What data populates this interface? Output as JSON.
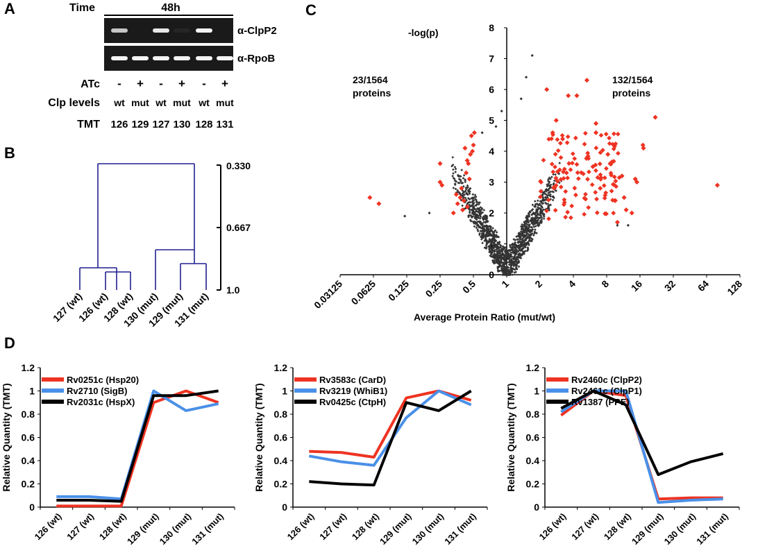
{
  "panels": {
    "A": {
      "label": "A",
      "time_label": "Time",
      "time_value": "48h",
      "blot_labels": [
        "α-ClpP2",
        "α-RpoB"
      ],
      "rows": [
        {
          "label": "ATc",
          "values": [
            "-",
            "+",
            "-",
            "+",
            "-",
            "+"
          ]
        },
        {
          "label": "Clp levels",
          "values": [
            "wt",
            "mut",
            "wt",
            "mut",
            "wt",
            "mut"
          ]
        },
        {
          "label": "TMT",
          "values": [
            "126",
            "129",
            "127",
            "130",
            "128",
            "131"
          ]
        }
      ],
      "clpp2_band_intensity": [
        0.75,
        0.0,
        0.9,
        0.05,
        0.95,
        0.0
      ],
      "rpob_band_intensity": [
        0.95,
        0.95,
        0.95,
        0.95,
        0.95,
        0.95
      ]
    },
    "B": {
      "label": "B",
      "leaves": [
        "127 (wt)",
        "126 (wt)",
        "128 (wt)",
        "130 (mut)",
        "129 (mut)",
        "131 (mut)"
      ],
      "scale_ticks": [
        "0.330",
        "0.667",
        "1.0"
      ],
      "line_color": "#1f1f8f"
    },
    "C": {
      "label": "C",
      "y_axis_label": "-log(p)",
      "y_ticks": [
        "0",
        "1",
        "2",
        "3",
        "4",
        "5",
        "6",
        "7",
        "8"
      ],
      "x_ticks": [
        "0.03125",
        "0.0625",
        "0.125",
        "0.25",
        "0.5",
        "1",
        "2",
        "4",
        "8",
        "16",
        "32",
        "64",
        "128"
      ],
      "x_axis_label": "Average Protein Ratio (mut/wt)",
      "left_annotation": [
        "23/1564",
        "proteins"
      ],
      "right_annotation": [
        "132/1564",
        "proteins"
      ],
      "sig_color": "#ee3322",
      "nonsig_color": "#333333"
    },
    "D": {
      "label": "D",
      "y_axis_label": "Relative Quantity (TMT)",
      "y_ticks": [
        "0",
        "0.2",
        "0.4",
        "0.6",
        "0.8",
        "1",
        "1.2"
      ],
      "x_ticks": [
        "126 (wt)",
        "127 (wt)",
        "128 (wt)",
        "129 (mut)",
        "130 (mut)",
        "131 (mut)"
      ]
    }
  },
  "chart_data": [
    {
      "type": "scatter",
      "panel": "C",
      "xscale": "log2",
      "xlim": [
        0.03125,
        128
      ],
      "ylim": [
        0,
        8
      ],
      "xlabel": "Average Protein Ratio (mut/wt)",
      "ylabel": "-log(p)",
      "series": [
        {
          "points": [
            [
              0.058,
              2.5
            ],
            [
              0.07,
              2.3
            ],
            [
              0.25,
              3.6
            ],
            [
              0.25,
              3.0
            ],
            [
              0.26,
              2.9
            ],
            [
              0.33,
              2.0
            ],
            [
              0.38,
              2.5
            ],
            [
              0.4,
              2.1
            ],
            [
              0.42,
              4.1
            ],
            [
              0.44,
              3.7
            ],
            [
              0.45,
              3.6
            ],
            [
              0.48,
              4.5
            ],
            [
              0.5,
              4.2
            ],
            [
              0.36,
              2.3
            ],
            [
              0.47,
              3.9
            ],
            [
              0.43,
              3.3
            ],
            [
              0.39,
              2.8
            ],
            [
              0.51,
              4.6
            ],
            [
              0.35,
              2.6
            ],
            [
              0.46,
              3.1
            ],
            [
              0.41,
              2.4
            ],
            [
              0.49,
              4.0
            ],
            [
              0.44,
              2.2
            ]
          ]
        },
        {
          "points": [
            [
              2.3,
              6.0
            ],
            [
              2.6,
              4.6
            ],
            [
              2.8,
              5.0
            ],
            [
              3.2,
              4.4
            ],
            [
              3.6,
              5.8
            ],
            [
              4.3,
              5.8
            ],
            [
              5.3,
              6.3
            ],
            [
              6.4,
              4.9
            ],
            [
              6.4,
              4.6
            ],
            [
              8.2,
              3.9
            ],
            [
              8.6,
              3.6
            ],
            [
              11.0,
              3.2
            ],
            [
              11.5,
              2.5
            ],
            [
              12.0,
              2.1
            ],
            [
              14.5,
              3.1
            ],
            [
              15.0,
              3.0
            ],
            [
              17.0,
              4.2
            ],
            [
              17.2,
              4.1
            ],
            [
              22.0,
              5.1
            ],
            [
              80.0,
              2.9
            ],
            [
              13.5,
              2.0
            ],
            [
              9.5,
              2.4
            ],
            [
              10.0,
              1.7
            ],
            [
              7.0,
              2.8
            ],
            [
              6.0,
              3.5
            ]
          ]
        },
        {
          "points": [
            [
              0.2,
              2.0
            ],
            [
              0.12,
              1.9
            ],
            [
              1.5,
              6.4
            ],
            [
              1.7,
              7.1
            ],
            [
              0.9,
              5.3
            ],
            [
              1.35,
              5.7
            ],
            [
              0.8,
              4.8
            ],
            [
              10.0,
              1.6
            ],
            [
              12.5,
              1.6
            ],
            [
              0.6,
              4.6
            ]
          ]
        }
      ]
    },
    {
      "type": "line",
      "panel": "D-1",
      "x": [
        "126 (wt)",
        "127 (wt)",
        "128 (wt)",
        "129 (mut)",
        "130 (mut)",
        "131 (mut)"
      ],
      "ylim": [
        0,
        1.2
      ],
      "ylabel": "Relative Quantity (TMT)",
      "series": [
        {
          "name": "Rv0251c (Hsp20)",
          "color": "#ee3322",
          "values": [
            0.01,
            0.01,
            0.01,
            0.9,
            1.0,
            0.9
          ]
        },
        {
          "name": "Rv2710 (SigB)",
          "color": "#4a90e8",
          "values": [
            0.09,
            0.09,
            0.07,
            1.0,
            0.83,
            0.89
          ]
        },
        {
          "name": "Rv2031c (HspX)",
          "color": "#000000",
          "values": [
            0.06,
            0.06,
            0.05,
            0.96,
            0.96,
            1.0
          ]
        }
      ]
    },
    {
      "type": "line",
      "panel": "D-2",
      "x": [
        "126 (wt)",
        "127 (wt)",
        "128 (wt)",
        "129 (mut)",
        "130 (mut)",
        "131 (mut)"
      ],
      "ylim": [
        0,
        1.2
      ],
      "ylabel": "Relative Quantity (TMT)",
      "series": [
        {
          "name": "Rv3583c (CarD)",
          "color": "#ee3322",
          "values": [
            0.48,
            0.47,
            0.43,
            0.94,
            1.0,
            0.92
          ]
        },
        {
          "name": "Rv3219 (WhiB1)",
          "color": "#4a90e8",
          "values": [
            0.44,
            0.39,
            0.36,
            0.77,
            1.0,
            0.88
          ]
        },
        {
          "name": "Rv0425c (CtpH)",
          "color": "#000000",
          "values": [
            0.22,
            0.2,
            0.19,
            0.9,
            0.83,
            1.0
          ]
        }
      ]
    },
    {
      "type": "line",
      "panel": "D-3",
      "x": [
        "126 (wt)",
        "127 (wt)",
        "128 (wt)",
        "129 (mut)",
        "130 (mut)",
        "131 (mut)"
      ],
      "ylim": [
        0,
        1.2
      ],
      "ylabel": "Relative Quantity (TMT)",
      "series": [
        {
          "name": "Rv2460c (ClpP2)",
          "color": "#ee3322",
          "values": [
            0.79,
            1.0,
            0.96,
            0.07,
            0.08,
            0.08
          ]
        },
        {
          "name": "Rv2461c (ClpP1)",
          "color": "#4a90e8",
          "values": [
            0.82,
            1.0,
            1.0,
            0.04,
            0.06,
            0.07
          ]
        },
        {
          "name": "Rv1387 (PPE)",
          "color": "#000000",
          "values": [
            0.85,
            1.0,
            0.88,
            0.28,
            0.39,
            0.46
          ]
        }
      ]
    }
  ]
}
